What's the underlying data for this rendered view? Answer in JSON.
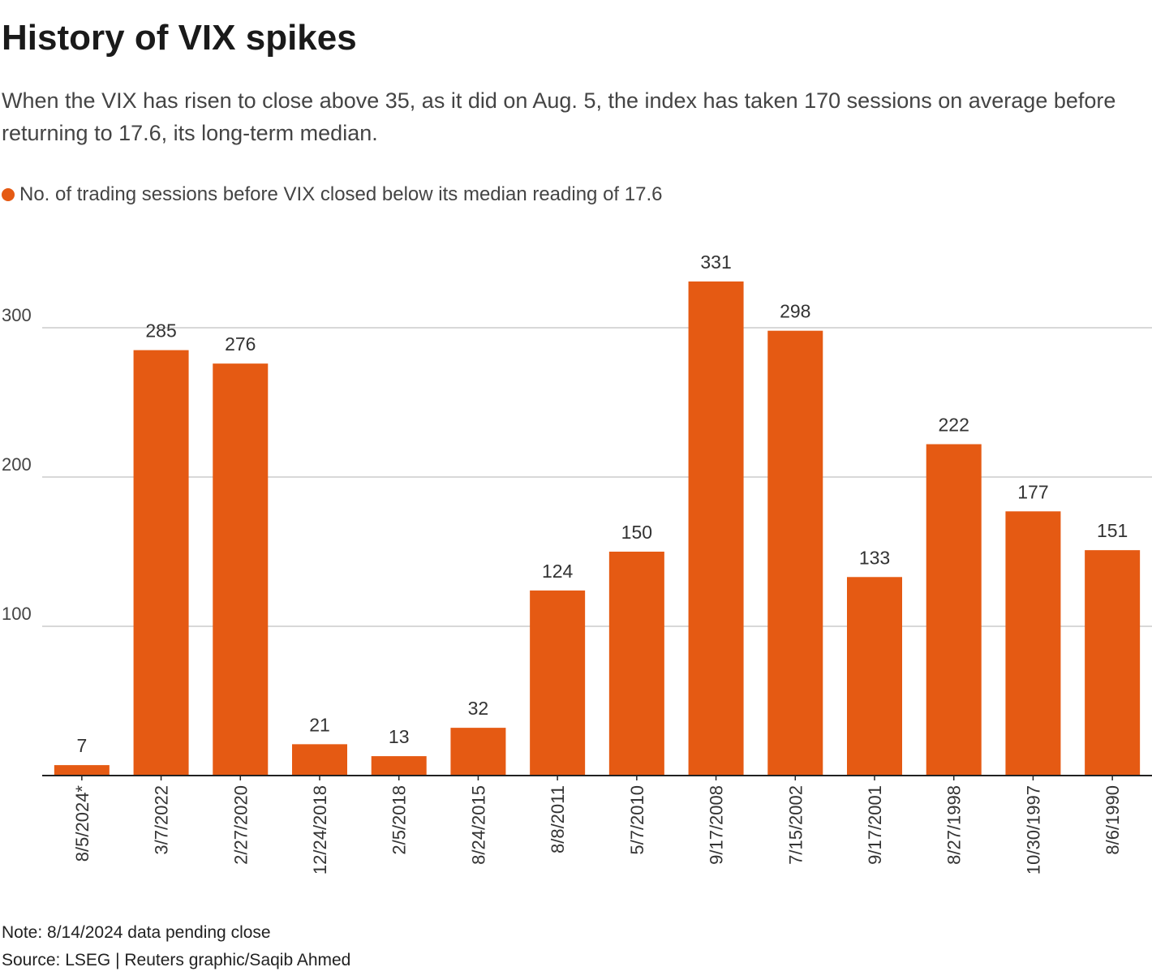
{
  "header": {
    "title": "History of VIX spikes",
    "subtitle": "When the VIX has risen to close above 35, as it did on Aug. 5, the index has taken 170 sessions on average before returning to 17.6, its long-term median."
  },
  "footer": {
    "note": "Note: 8/14/2024 data pending close",
    "source": "Source: LSEG | Reuters graphic/Saqib Ahmed"
  },
  "colors": {
    "bar": "#e55a13",
    "grid": "#cccccc",
    "axis": "#222222"
  },
  "chart_data": {
    "type": "bar",
    "categories": [
      "8/5/2024*",
      "3/7/2022",
      "2/27/2020",
      "12/24/2018",
      "2/5/2018",
      "8/24/2015",
      "8/8/2011",
      "5/7/2010",
      "9/17/2008",
      "7/15/2002",
      "9/17/2001",
      "8/27/1998",
      "10/30/1997",
      "8/6/1990"
    ],
    "series": [
      {
        "name": "No. of trading sessions before VIX closed below its median reading of 17.6",
        "values": [
          7,
          285,
          276,
          21,
          13,
          32,
          124,
          150,
          331,
          298,
          133,
          222,
          177,
          151
        ]
      }
    ],
    "yticks": [
      100,
      200,
      300
    ],
    "ylim": [
      0,
      345
    ],
    "grid": true,
    "legend": "top-left"
  }
}
